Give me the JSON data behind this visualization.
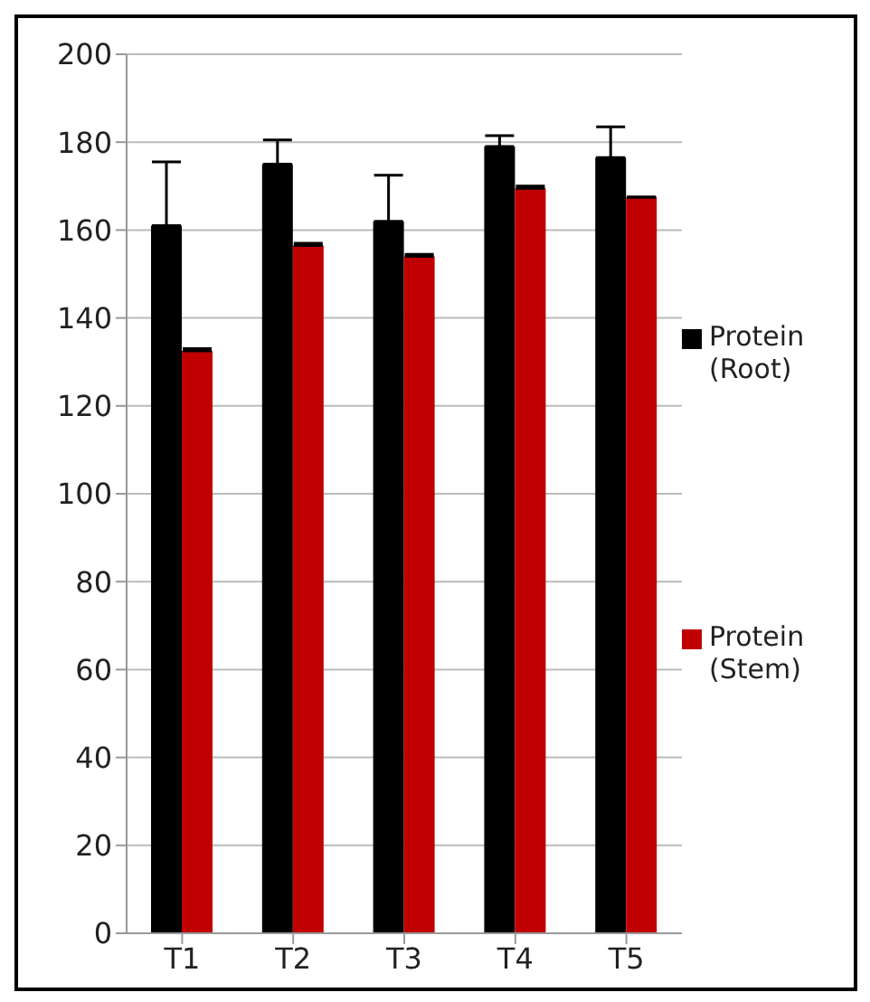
{
  "chart_data": {
    "type": "bar",
    "categories": [
      "T1",
      "T2",
      "T3",
      "T4",
      "T5"
    ],
    "series": [
      {
        "name": "Protein (Root)",
        "color": "#000000",
        "values": [
          161,
          175,
          162,
          179,
          176.5
        ],
        "errors": [
          [
            161,
            175.5
          ],
          [
            175,
            180.5
          ],
          [
            162,
            172.5
          ],
          [
            179,
            181.5
          ],
          [
            176.5,
            183.5
          ]
        ]
      },
      {
        "name": "Protein (Stem)",
        "color": "#c00000",
        "values": [
          132.5,
          156.5,
          154,
          169.5,
          167.5
        ],
        "errors": [
          [
            132.5,
            133
          ],
          [
            156.5,
            157
          ],
          [
            154,
            154.5
          ],
          [
            169.5,
            170
          ],
          null
        ]
      }
    ],
    "ylim": [
      0,
      200
    ],
    "yticks": [
      0,
      20,
      40,
      60,
      80,
      100,
      120,
      140,
      160,
      180,
      200
    ],
    "grid": "y",
    "legend": "right"
  }
}
